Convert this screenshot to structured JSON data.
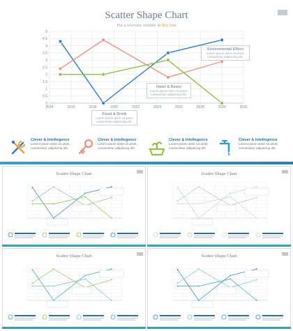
{
  "title": "Scatter Shape Chart",
  "subtitle_prefix": "Put a relevant subtitle in ",
  "subtitle_highlight": "this line",
  "colors": {
    "title": "#6b7d8c",
    "highlight": "#e6a23c",
    "blue": "#2a7fc9",
    "salmon": "#e8927c",
    "green": "#8fbf3f",
    "feature_title": "#2a6f9a",
    "teal": "#2fa3b8"
  },
  "chart_data": {
    "type": "line",
    "x": [
      2015,
      2019,
      2025,
      2030
    ],
    "xlim": [
      2014,
      2032
    ],
    "xticks": [
      "2014",
      "2016",
      "2018",
      "2020",
      "2022",
      "2024",
      "2026",
      "2028",
      "2030",
      "2032"
    ],
    "ylim": [
      0,
      5
    ],
    "yticks": [
      "0",
      "0.5",
      "1",
      "1.5",
      "2",
      "2.5",
      "3",
      "3.5",
      "4",
      "4.5",
      "5"
    ],
    "grid": true,
    "series": [
      {
        "color": "#2a7fc9",
        "values": [
          4.3,
          0,
          3.5,
          4.4
        ]
      },
      {
        "color": "#e8927c",
        "values": [
          2.4,
          4.4,
          1.8,
          2.9
        ]
      },
      {
        "color": "#8fbf3f",
        "values": [
          2.0,
          2.0,
          3.0,
          0
        ]
      }
    ]
  },
  "callouts": {
    "env": {
      "title": "Enviromental Effect",
      "l1": "Lorem ipsum dolor sit amet,",
      "l2": "consectetur adipiscing elit."
    },
    "hotel": {
      "title": "Hotel & Resto",
      "l1": "Lorem ipsum dolor sit amet,",
      "l2": "consectetur adipiscing elit."
    },
    "food": {
      "title": "Food & Drink",
      "l1": "Lorem ipsum dolor sit amet,",
      "l2": "consectetur adipiscing elit."
    }
  },
  "features": [
    {
      "icon": "tools-icon",
      "title": "Clever & Intellegence",
      "l1": "Lorem ipsum dolor sit amet,",
      "l2": "consectetur adipiscing elit."
    },
    {
      "icon": "key-icon",
      "title": "Clever & Intellegence",
      "l1": "Lorem ipsum dolor sit amet,",
      "l2": "consectetur adipiscing elit."
    },
    {
      "icon": "house-plant-icon",
      "title": "Clever & Intellegence",
      "l1": "Lorem ipsum dolor sit amet,",
      "l2": "consectetur adipiscing elit."
    },
    {
      "icon": "faucet-icon",
      "title": "Clever & Intellegence",
      "l1": "Lorem ipsum dolor sit amet,",
      "l2": "consectetur adipiscing elit."
    }
  ],
  "thumbnails": [
    {
      "title": "Scatter Shape Chart",
      "bar_color": "#2fa3b8",
      "colors": [
        "#2a7fc9",
        "#a2a8ae",
        "#8fbf3f"
      ]
    },
    {
      "title": "Scatter Shape Chart",
      "bar_color": "#2fa3b8",
      "colors": [
        "#c9ced3",
        "#b9bec3",
        "#d0d4d8"
      ]
    },
    {
      "title": "Scatter Shape Chart",
      "bar_color": "#2fa3b8",
      "colors": [
        "#2fa3b8",
        "#8fbf3f",
        "#6fc1c9"
      ]
    },
    {
      "title": "Scatter Shape Chart",
      "bar_color": "#2fa3b8",
      "colors": [
        "#2a7fc9",
        "#6fc1c9",
        "#2fa3b8"
      ]
    }
  ]
}
